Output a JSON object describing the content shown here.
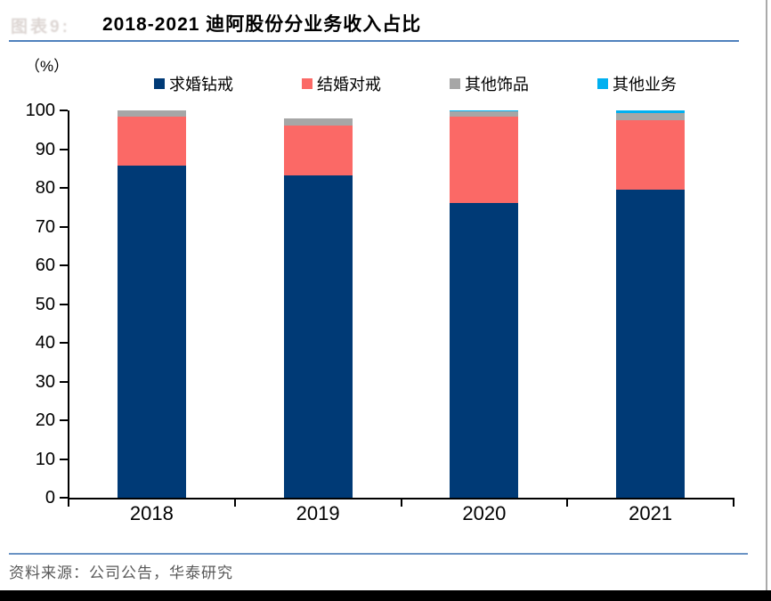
{
  "header": {
    "figure_label": "图表9:",
    "title": "2018-2021 迪阿股份分业务收入占比"
  },
  "chart": {
    "unit_label": "（%）"
  },
  "footer": {
    "source_text": "资料来源：公司公告，华泰研究"
  },
  "colors": {
    "title_rule": "#4F81BD",
    "footer_rule": "#6A93C4",
    "axis": "#000000",
    "source_text": "#595959",
    "bottom_bar": "#000000",
    "figure_label": "#DDD6D3",
    "right_border": "#AAAAAA"
  },
  "chart_data": {
    "type": "bar",
    "stacked": true,
    "title": "2018-2021 迪阿股份分业务收入占比",
    "ylabel": "（%）",
    "ylim": [
      0,
      100
    ],
    "yticks": [
      0,
      10,
      20,
      30,
      40,
      50,
      60,
      70,
      80,
      90,
      100
    ],
    "grid": false,
    "legend_position": "top",
    "categories": [
      "2018",
      "2019",
      "2020",
      "2021"
    ],
    "series": [
      {
        "name": "求婚钻戒",
        "color": "#003A76",
        "values": [
          85.7,
          83.2,
          76.0,
          79.5
        ]
      },
      {
        "name": "结婚对戒",
        "color": "#FB6966",
        "values": [
          12.7,
          12.8,
          22.5,
          18.0
        ]
      },
      {
        "name": "其他饰品",
        "color": "#A6A6A6",
        "values": [
          1.6,
          2.0,
          1.4,
          1.7
        ]
      },
      {
        "name": "其他业务",
        "color": "#00B0F0",
        "values": [
          0.0,
          0.0,
          0.1,
          0.8
        ]
      }
    ]
  }
}
